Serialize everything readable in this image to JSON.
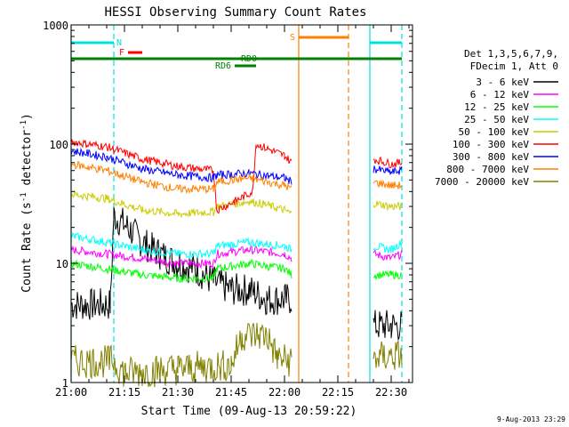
{
  "chart_data": {
    "type": "line",
    "title": "HESSI Observing Summary Count Rates",
    "xlabel": "Start Time (09-Aug-13 20:59:22)",
    "ylabel_main": "Count Rate (s",
    "ylabel_sup1": "-1",
    "ylabel_mid": " detector",
    "ylabel_sup2": "-1",
    "ylabel_end": ")",
    "y_scale": "log",
    "ylim": [
      1,
      1000
    ],
    "xlim": [
      "21:00",
      "22:36"
    ],
    "x_ticks": [
      "21:00",
      "21:15",
      "21:30",
      "21:45",
      "22:00",
      "22:15",
      "22:30"
    ],
    "y_ticks": [
      "1",
      "10",
      "100",
      "1000"
    ],
    "legend_header": [
      "Det 1,3,5,6,7,9,",
      "FDecim 1, Att 0"
    ],
    "timestamp": "9-Aug-2013 23:29",
    "flags": [
      {
        "label": "N",
        "color": "#00e0e0",
        "from": "21:00",
        "to": "21:12"
      },
      {
        "label": "N",
        "color": "#00e0e0",
        "from": "22:24",
        "to": "22:33"
      },
      {
        "label": "F",
        "color": "#ff0000",
        "from": "21:16",
        "to": "21:20"
      },
      {
        "label": "S",
        "color": "#ff8000",
        "from": "22:04",
        "to": "22:18"
      },
      {
        "label": "RD0",
        "color": "#008000",
        "from": "21:00",
        "to": "22:33"
      },
      {
        "label": "RD6",
        "color": "#008000",
        "from": "21:46",
        "to": "21:52"
      }
    ],
    "vlines": [
      {
        "time": "21:00",
        "color": "#00e0e0",
        "style": "solid"
      },
      {
        "time": "21:12",
        "color": "#00e0e0",
        "style": "dashed"
      },
      {
        "time": "22:04",
        "color": "#ff8000",
        "style": "solid"
      },
      {
        "time": "22:18",
        "color": "#ff8000",
        "style": "dashed"
      },
      {
        "time": "22:24",
        "color": "#00e0e0",
        "style": "solid"
      },
      {
        "time": "22:33",
        "color": "#00e0e0",
        "style": "dashed"
      }
    ],
    "series": [
      {
        "name": "3 - 6 keV",
        "color": "#000000",
        "points": [
          [
            "21:00",
            4.5
          ],
          [
            "21:11",
            4.5
          ],
          [
            "21:12",
            25
          ],
          [
            "21:16",
            20
          ],
          [
            "21:20",
            15
          ],
          [
            "21:25",
            12
          ],
          [
            "21:30",
            10
          ],
          [
            "21:35",
            9
          ],
          [
            "21:40",
            7
          ],
          [
            "21:45",
            6
          ],
          [
            "21:50",
            6
          ],
          [
            "21:55",
            5
          ],
          [
            "22:00",
            5
          ],
          [
            "22:02",
            5
          ],
          [
            "22:25",
            3
          ],
          [
            "22:30",
            3
          ],
          [
            "22:33",
            3
          ]
        ]
      },
      {
        "name": "6 - 12 keV",
        "color": "#ff00ff",
        "points": [
          [
            "21:00",
            13
          ],
          [
            "21:10",
            12
          ],
          [
            "21:20",
            11
          ],
          [
            "21:30",
            10
          ],
          [
            "21:40",
            10
          ],
          [
            "21:41",
            12
          ],
          [
            "21:50",
            13
          ],
          [
            "22:00",
            12
          ],
          [
            "22:02",
            11
          ],
          [
            "22:25",
            12
          ],
          [
            "22:30",
            11
          ],
          [
            "22:33",
            12
          ]
        ]
      },
      {
        "name": "12 - 25 keV",
        "color": "#00ff00",
        "points": [
          [
            "21:00",
            10
          ],
          [
            "21:10",
            9
          ],
          [
            "21:20",
            8
          ],
          [
            "21:30",
            7.5
          ],
          [
            "21:40",
            7.5
          ],
          [
            "21:41",
            9
          ],
          [
            "21:50",
            10
          ],
          [
            "22:00",
            9
          ],
          [
            "22:02",
            8
          ],
          [
            "22:25",
            8
          ],
          [
            "22:30",
            8
          ],
          [
            "22:33",
            8
          ]
        ]
      },
      {
        "name": "25 - 50 keV",
        "color": "#00ffff",
        "points": [
          [
            "21:00",
            17
          ],
          [
            "21:10",
            15
          ],
          [
            "21:20",
            13
          ],
          [
            "21:30",
            12
          ],
          [
            "21:40",
            12
          ],
          [
            "21:41",
            14
          ],
          [
            "21:50",
            15
          ],
          [
            "22:00",
            14
          ],
          [
            "22:02",
            13
          ],
          [
            "22:25",
            14
          ],
          [
            "22:30",
            13
          ],
          [
            "22:33",
            15
          ]
        ]
      },
      {
        "name": "50 - 100 keV",
        "color": "#cccc00",
        "points": [
          [
            "21:00",
            38
          ],
          [
            "21:10",
            35
          ],
          [
            "21:20",
            28
          ],
          [
            "21:30",
            26
          ],
          [
            "21:40",
            27
          ],
          [
            "21:41",
            30
          ],
          [
            "21:50",
            33
          ],
          [
            "21:53",
            32
          ],
          [
            "22:00",
            28
          ],
          [
            "22:02",
            26
          ],
          [
            "22:25",
            32
          ],
          [
            "22:30",
            30
          ],
          [
            "22:33",
            30
          ]
        ]
      },
      {
        "name": "100 - 300 keV",
        "color": "#ff0000",
        "points": [
          [
            "21:00",
            105
          ],
          [
            "21:10",
            95
          ],
          [
            "21:20",
            75
          ],
          [
            "21:30",
            65
          ],
          [
            "21:40",
            60
          ],
          [
            "21:41",
            28
          ],
          [
            "21:46",
            33
          ],
          [
            "21:51",
            40
          ],
          [
            "21:52",
            100
          ],
          [
            "22:00",
            80
          ],
          [
            "22:02",
            70
          ],
          [
            "22:25",
            75
          ],
          [
            "22:30",
            68
          ],
          [
            "22:33",
            70
          ]
        ]
      },
      {
        "name": "300 - 800 keV",
        "color": "#0000ff",
        "points": [
          [
            "21:00",
            88
          ],
          [
            "21:10",
            78
          ],
          [
            "21:20",
            62
          ],
          [
            "21:30",
            55
          ],
          [
            "21:40",
            52
          ],
          [
            "21:41",
            55
          ],
          [
            "21:50",
            57
          ],
          [
            "22:00",
            52
          ],
          [
            "22:02",
            48
          ],
          [
            "22:25",
            62
          ],
          [
            "22:30",
            58
          ],
          [
            "22:33",
            60
          ]
        ]
      },
      {
        "name": "800 - 7000 keV",
        "color": "#ff8000",
        "points": [
          [
            "21:00",
            68
          ],
          [
            "21:10",
            60
          ],
          [
            "21:20",
            48
          ],
          [
            "21:30",
            42
          ],
          [
            "21:40",
            42
          ],
          [
            "21:41",
            48
          ],
          [
            "21:50",
            52
          ],
          [
            "22:00",
            45
          ],
          [
            "22:02",
            42
          ],
          [
            "22:25",
            48
          ],
          [
            "22:30",
            45
          ],
          [
            "22:33",
            45
          ]
        ]
      },
      {
        "name": "7000 - 20000 keV",
        "color": "#808000",
        "points": [
          [
            "21:00",
            1.5
          ],
          [
            "21:12",
            1.5
          ],
          [
            "21:15",
            1.2
          ],
          [
            "21:30",
            1.3
          ],
          [
            "21:45",
            1.4
          ],
          [
            "21:48",
            2.5
          ],
          [
            "21:55",
            2.5
          ],
          [
            "21:58",
            1.6
          ],
          [
            "22:02",
            1.5
          ],
          [
            "22:25",
            1.6
          ],
          [
            "22:33",
            1.7
          ]
        ]
      }
    ]
  }
}
